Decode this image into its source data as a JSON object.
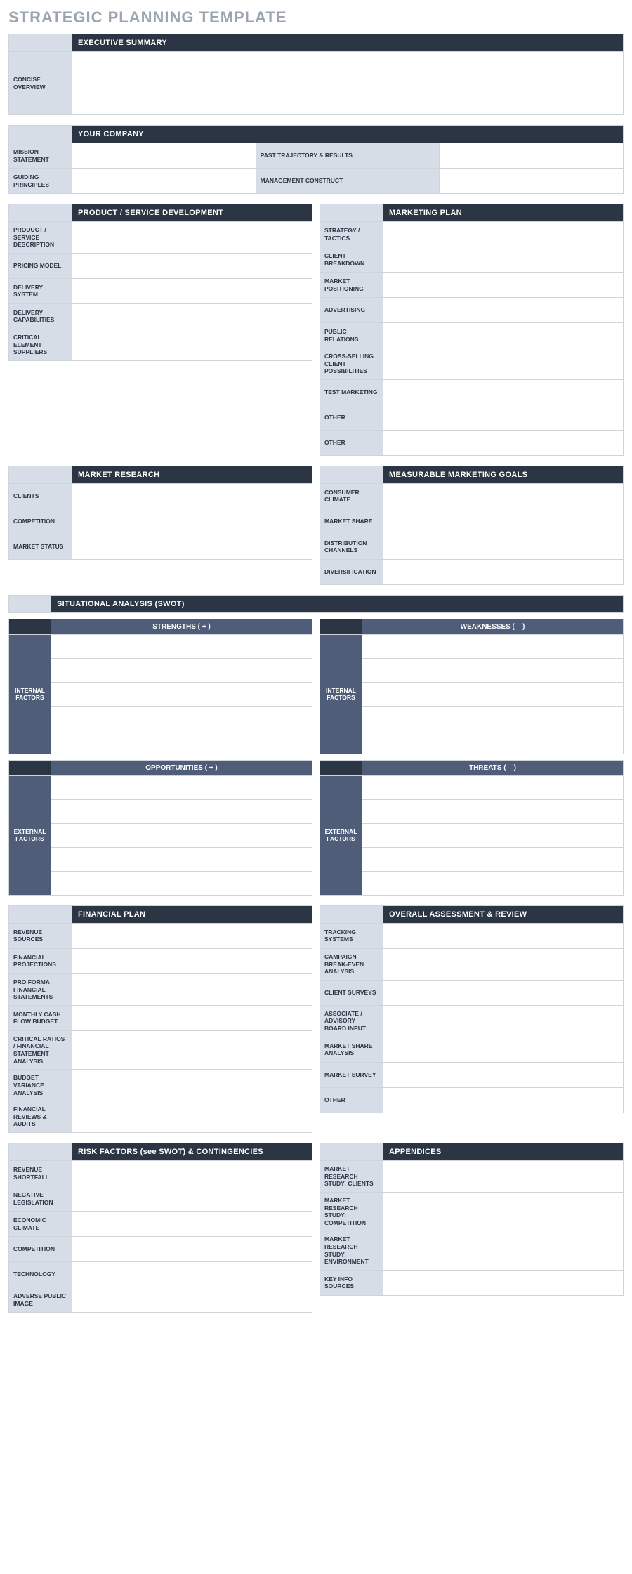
{
  "title": "STRATEGIC PLANNING TEMPLATE",
  "colors": {
    "page_title": "#9aa5b1",
    "header_bg": "#2b3544",
    "header_text": "#ffffff",
    "stub_bg": "#d7dde6",
    "swot_sub_bg": "#4f5d78",
    "border": "#cfd4db",
    "body_bg": "#ffffff"
  },
  "exec": {
    "header": "EXECUTIVE SUMMARY",
    "rows": [
      {
        "label": "CONCISE OVERVIEW",
        "value": ""
      }
    ]
  },
  "company": {
    "header": "YOUR COMPANY",
    "left_rows": [
      {
        "label": "MISSION STATEMENT",
        "value": ""
      },
      {
        "label": "GUIDING PRINCIPLES",
        "value": ""
      }
    ],
    "right_rows": [
      {
        "label": "PAST TRAJECTORY & RESULTS",
        "value": ""
      },
      {
        "label": "MANAGEMENT CONSTRUCT",
        "value": ""
      }
    ]
  },
  "product": {
    "header": "PRODUCT / SERVICE DEVELOPMENT",
    "rows": [
      {
        "label": "PRODUCT / SERVICE DESCRIPTION",
        "value": ""
      },
      {
        "label": "PRICING MODEL",
        "value": ""
      },
      {
        "label": "DELIVERY SYSTEM",
        "value": ""
      },
      {
        "label": "DELIVERY CAPABILITIES",
        "value": ""
      },
      {
        "label": "CRITICAL ELEMENT SUPPLIERS",
        "value": ""
      }
    ]
  },
  "marketing": {
    "header": "MARKETING PLAN",
    "rows": [
      {
        "label": "STRATEGY / TACTICS",
        "value": ""
      },
      {
        "label": "CLIENT BREAKDOWN",
        "value": ""
      },
      {
        "label": "MARKET POSITIONING",
        "value": ""
      },
      {
        "label": "ADVERTISING",
        "value": ""
      },
      {
        "label": "PUBLIC RELATIONS",
        "value": ""
      },
      {
        "label": "CROSS-SELLING CLIENT POSSIBILITIES",
        "value": ""
      },
      {
        "label": "TEST MARKETING",
        "value": ""
      },
      {
        "label": "OTHER",
        "value": ""
      },
      {
        "label": "OTHER",
        "value": ""
      }
    ]
  },
  "research": {
    "header": "MARKET RESEARCH",
    "rows": [
      {
        "label": "CLIENTS",
        "value": ""
      },
      {
        "label": "COMPETITION",
        "value": ""
      },
      {
        "label": "MARKET STATUS",
        "value": ""
      }
    ]
  },
  "goals": {
    "header": "MEASURABLE MARKETING GOALS",
    "rows": [
      {
        "label": "CONSUMER CLIMATE",
        "value": ""
      },
      {
        "label": "MARKET SHARE",
        "value": ""
      },
      {
        "label": "DISTRIBUTION CHANNELS",
        "value": ""
      },
      {
        "label": "DIVERSIFICATION",
        "value": ""
      }
    ]
  },
  "swot": {
    "header": "SITUATIONAL ANALYSIS (SWOT)",
    "row_count": 5,
    "strengths": {
      "title": "STRENGTHS ( + )",
      "side": "INTERNAL FACTORS"
    },
    "weaknesses": {
      "title": "WEAKNESSES ( – )",
      "side": "INTERNAL FACTORS"
    },
    "opportunities": {
      "title": "OPPORTUNITIES ( + )",
      "side": "EXTERNAL FACTORS"
    },
    "threats": {
      "title": "THREATS ( – )",
      "side": "EXTERNAL FACTORS"
    }
  },
  "financial": {
    "header": "FINANCIAL PLAN",
    "rows": [
      {
        "label": "REVENUE SOURCES",
        "value": ""
      },
      {
        "label": "FINANCIAL PROJECTIONS",
        "value": ""
      },
      {
        "label": "PRO FORMA FINANCIAL STATEMENTS",
        "value": ""
      },
      {
        "label": "MONTHLY CASH FLOW BUDGET",
        "value": ""
      },
      {
        "label": "CRITICAL RATIOS / FINANCIAL STATEMENT ANALYSIS",
        "value": ""
      },
      {
        "label": "BUDGET VARIANCE ANALYSIS",
        "value": ""
      },
      {
        "label": "FINANCIAL REVIEWS & AUDITS",
        "value": ""
      }
    ]
  },
  "assessment": {
    "header": "OVERALL ASSESSMENT & REVIEW",
    "rows": [
      {
        "label": "TRACKING SYSTEMS",
        "value": ""
      },
      {
        "label": "CAMPAIGN BREAK-EVEN ANALYSIS",
        "value": ""
      },
      {
        "label": "CLIENT SURVEYS",
        "value": ""
      },
      {
        "label": "ASSOCIATE / ADVISORY BOARD INPUT",
        "value": ""
      },
      {
        "label": "MARKET SHARE ANALYSIS",
        "value": ""
      },
      {
        "label": "MARKET SURVEY",
        "value": ""
      },
      {
        "label": "OTHER",
        "value": ""
      }
    ]
  },
  "risks": {
    "header": "RISK FACTORS (see SWOT) & CONTINGENCIES",
    "rows": [
      {
        "label": "REVENUE SHORTFALL",
        "value": ""
      },
      {
        "label": "NEGATIVE LEGISLATION",
        "value": ""
      },
      {
        "label": "ECONOMIC CLIMATE",
        "value": ""
      },
      {
        "label": "COMPETITION",
        "value": ""
      },
      {
        "label": "TECHNOLOGY",
        "value": ""
      },
      {
        "label": "ADVERSE PUBLIC IMAGE",
        "value": ""
      }
    ]
  },
  "appendices": {
    "header": "APPENDICES",
    "rows": [
      {
        "label": "MARKET RESEARCH STUDY: CLIENTS",
        "value": ""
      },
      {
        "label": "MARKET RESEARCH STUDY: COMPETITION",
        "value": ""
      },
      {
        "label": "MARKET RESEARCH STUDY: ENVIRONMENT",
        "value": ""
      },
      {
        "label": "KEY INFO SOURCES",
        "value": ""
      }
    ]
  }
}
